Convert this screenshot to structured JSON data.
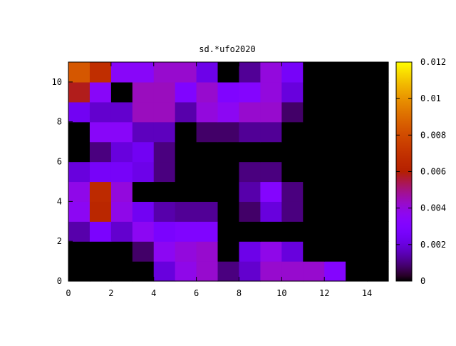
{
  "chart_data": {
    "type": "heatmap",
    "title": "sd.*ufo2020",
    "xlabel": "",
    "ylabel": "",
    "xlim": [
      0,
      15
    ],
    "ylim": [
      0,
      11
    ],
    "x_ticks": [
      0,
      2,
      4,
      6,
      8,
      10,
      12,
      14
    ],
    "y_ticks": [
      0,
      2,
      4,
      6,
      8,
      10
    ],
    "colorbar": {
      "range": [
        0,
        0.012
      ],
      "ticks": [
        0,
        0.002,
        0.004,
        0.006,
        0.008,
        0.01,
        0.012
      ],
      "tick_labels": [
        "0",
        "0.002",
        "0.004",
        "0.006",
        "0.008",
        "0.01",
        "0.012"
      ],
      "palette": "black-blue-purple-red-orange-yellow"
    },
    "grid": false,
    "cell_note": "rows listed bottom (y=0..1) to top (y=10..11); columns x=0..15",
    "values": [
      [
        0,
        0,
        0,
        0,
        0.002,
        0.0038,
        0.0042,
        0.001,
        0.0018,
        0.0042,
        0.0042,
        0.0042,
        0.0032,
        0,
        0
      ],
      [
        0,
        0,
        0,
        0.0008,
        0.0036,
        0.004,
        0.0042,
        0,
        0.0022,
        0.0038,
        0.002,
        0,
        0,
        0,
        0
      ],
      [
        0.0014,
        0.0028,
        0.0018,
        0.0036,
        0.0028,
        0.003,
        0.003,
        0,
        0,
        0,
        0,
        0,
        0,
        0,
        0
      ],
      [
        0.0036,
        0.0064,
        0.0038,
        0.0024,
        0.0014,
        0.0012,
        0.0012,
        0,
        0.0008,
        0.002,
        0.001,
        0,
        0,
        0,
        0
      ],
      [
        0.0038,
        0.0066,
        0.004,
        0,
        0,
        0,
        0,
        0,
        0.0014,
        0.0032,
        0.001,
        0,
        0,
        0,
        0
      ],
      [
        0.002,
        0.0026,
        0.0026,
        0.0022,
        0.001,
        0,
        0,
        0,
        0.001,
        0.001,
        0,
        0,
        0,
        0,
        0
      ],
      [
        0,
        0.001,
        0.002,
        0.0024,
        0.001,
        0,
        0,
        0,
        0,
        0,
        0,
        0,
        0,
        0,
        0
      ],
      [
        0,
        0.0034,
        0.0034,
        0.0016,
        0.0016,
        0,
        0.0008,
        0.0008,
        0.0012,
        0.0012,
        0,
        0,
        0,
        0,
        0
      ],
      [
        0.0024,
        0.0018,
        0.0018,
        0.0044,
        0.0044,
        0.0014,
        0.004,
        0.0036,
        0.0042,
        0.0042,
        0.0008,
        0,
        0,
        0,
        0
      ],
      [
        0.0058,
        0.0034,
        0,
        0.0044,
        0.0044,
        0.003,
        0.0042,
        0.003,
        0.0032,
        0.004,
        0.002,
        0,
        0,
        0,
        0
      ],
      [
        0.0084,
        0.0068,
        0.0034,
        0.0034,
        0.0042,
        0.0042,
        0.0022,
        0,
        0.0012,
        0.004,
        0.0026,
        0,
        0,
        0,
        0
      ]
    ]
  }
}
